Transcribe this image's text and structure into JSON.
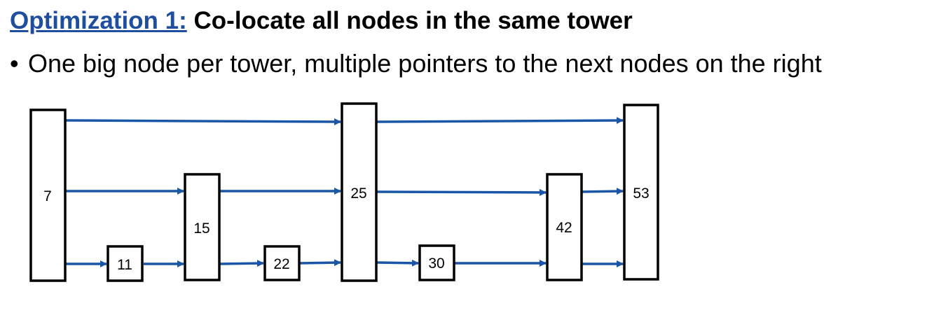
{
  "title": {
    "prefix": "Optimization 1:",
    "text": "Co-locate all nodes in the same tower"
  },
  "bullet": {
    "symbol": "•",
    "text": "One big node per tower, multiple pointers to the next nodes on the right"
  },
  "colors": {
    "title_prefix": "#1f4e9e",
    "pointer": "#1a56a5"
  },
  "diagram": {
    "nodes": [
      {
        "id": "n7",
        "label": "7"
      },
      {
        "id": "n11",
        "label": "11"
      },
      {
        "id": "n15",
        "label": "15"
      },
      {
        "id": "n22",
        "label": "22"
      },
      {
        "id": "n25",
        "label": "25"
      },
      {
        "id": "n30",
        "label": "30"
      },
      {
        "id": "n42",
        "label": "42"
      },
      {
        "id": "n53",
        "label": "53"
      }
    ],
    "pointers": [
      {
        "from": "7",
        "to": "25",
        "level": 3
      },
      {
        "from": "25",
        "to": "53",
        "level": 3
      },
      {
        "from": "7",
        "to": "15",
        "level": 2
      },
      {
        "from": "15",
        "to": "25",
        "level": 2
      },
      {
        "from": "25",
        "to": "42",
        "level": 2
      },
      {
        "from": "42",
        "to": "53",
        "level": 2
      },
      {
        "from": "7",
        "to": "11",
        "level": 1
      },
      {
        "from": "11",
        "to": "15",
        "level": 1
      },
      {
        "from": "15",
        "to": "22",
        "level": 1
      },
      {
        "from": "22",
        "to": "25",
        "level": 1
      },
      {
        "from": "25",
        "to": "30",
        "level": 1
      },
      {
        "from": "30",
        "to": "42",
        "level": 1
      },
      {
        "from": "42",
        "to": "53",
        "level": 1
      }
    ]
  }
}
